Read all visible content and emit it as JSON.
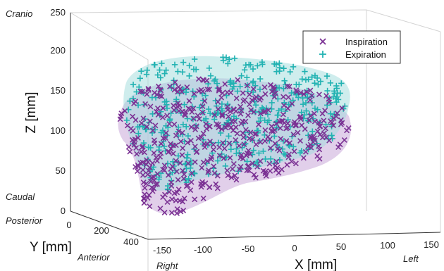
{
  "chart_data": {
    "type": "scatter",
    "xlabel": "X [mm]",
    "ylabel": "Y [mm]",
    "zlabel": "Z [mm]",
    "x_ticks": [
      "-150",
      "-100",
      "-50",
      "0",
      "50",
      "100",
      "150"
    ],
    "y_ticks": [
      "0",
      "200",
      "400"
    ],
    "z_ticks": [
      "0",
      "50",
      "100",
      "150",
      "200",
      "250"
    ],
    "xlim": [
      -150,
      150
    ],
    "ylim": [
      0,
      400
    ],
    "zlim": [
      0,
      250
    ],
    "direction_labels": {
      "cranio": "Cranio",
      "caudal": "Caudal",
      "posterior": "Posterior",
      "anterior": "Anterior",
      "right": "Right",
      "left": "Left"
    },
    "legend_position": "top-right",
    "series": [
      {
        "name": "Inspiration",
        "marker": "x",
        "color": "#7b3294",
        "surface_color": "#c9a8d8",
        "approx_extent": {
          "x": [
            -150,
            90
          ],
          "y": [
            20,
            380
          ],
          "z": [
            0,
            160
          ]
        }
      },
      {
        "name": "Expiration",
        "marker": "+",
        "color": "#22b2b2",
        "surface_color": "#aee3e3",
        "approx_extent": {
          "x": [
            -150,
            90
          ],
          "y": [
            20,
            380
          ],
          "z": [
            30,
            200
          ]
        }
      }
    ]
  }
}
